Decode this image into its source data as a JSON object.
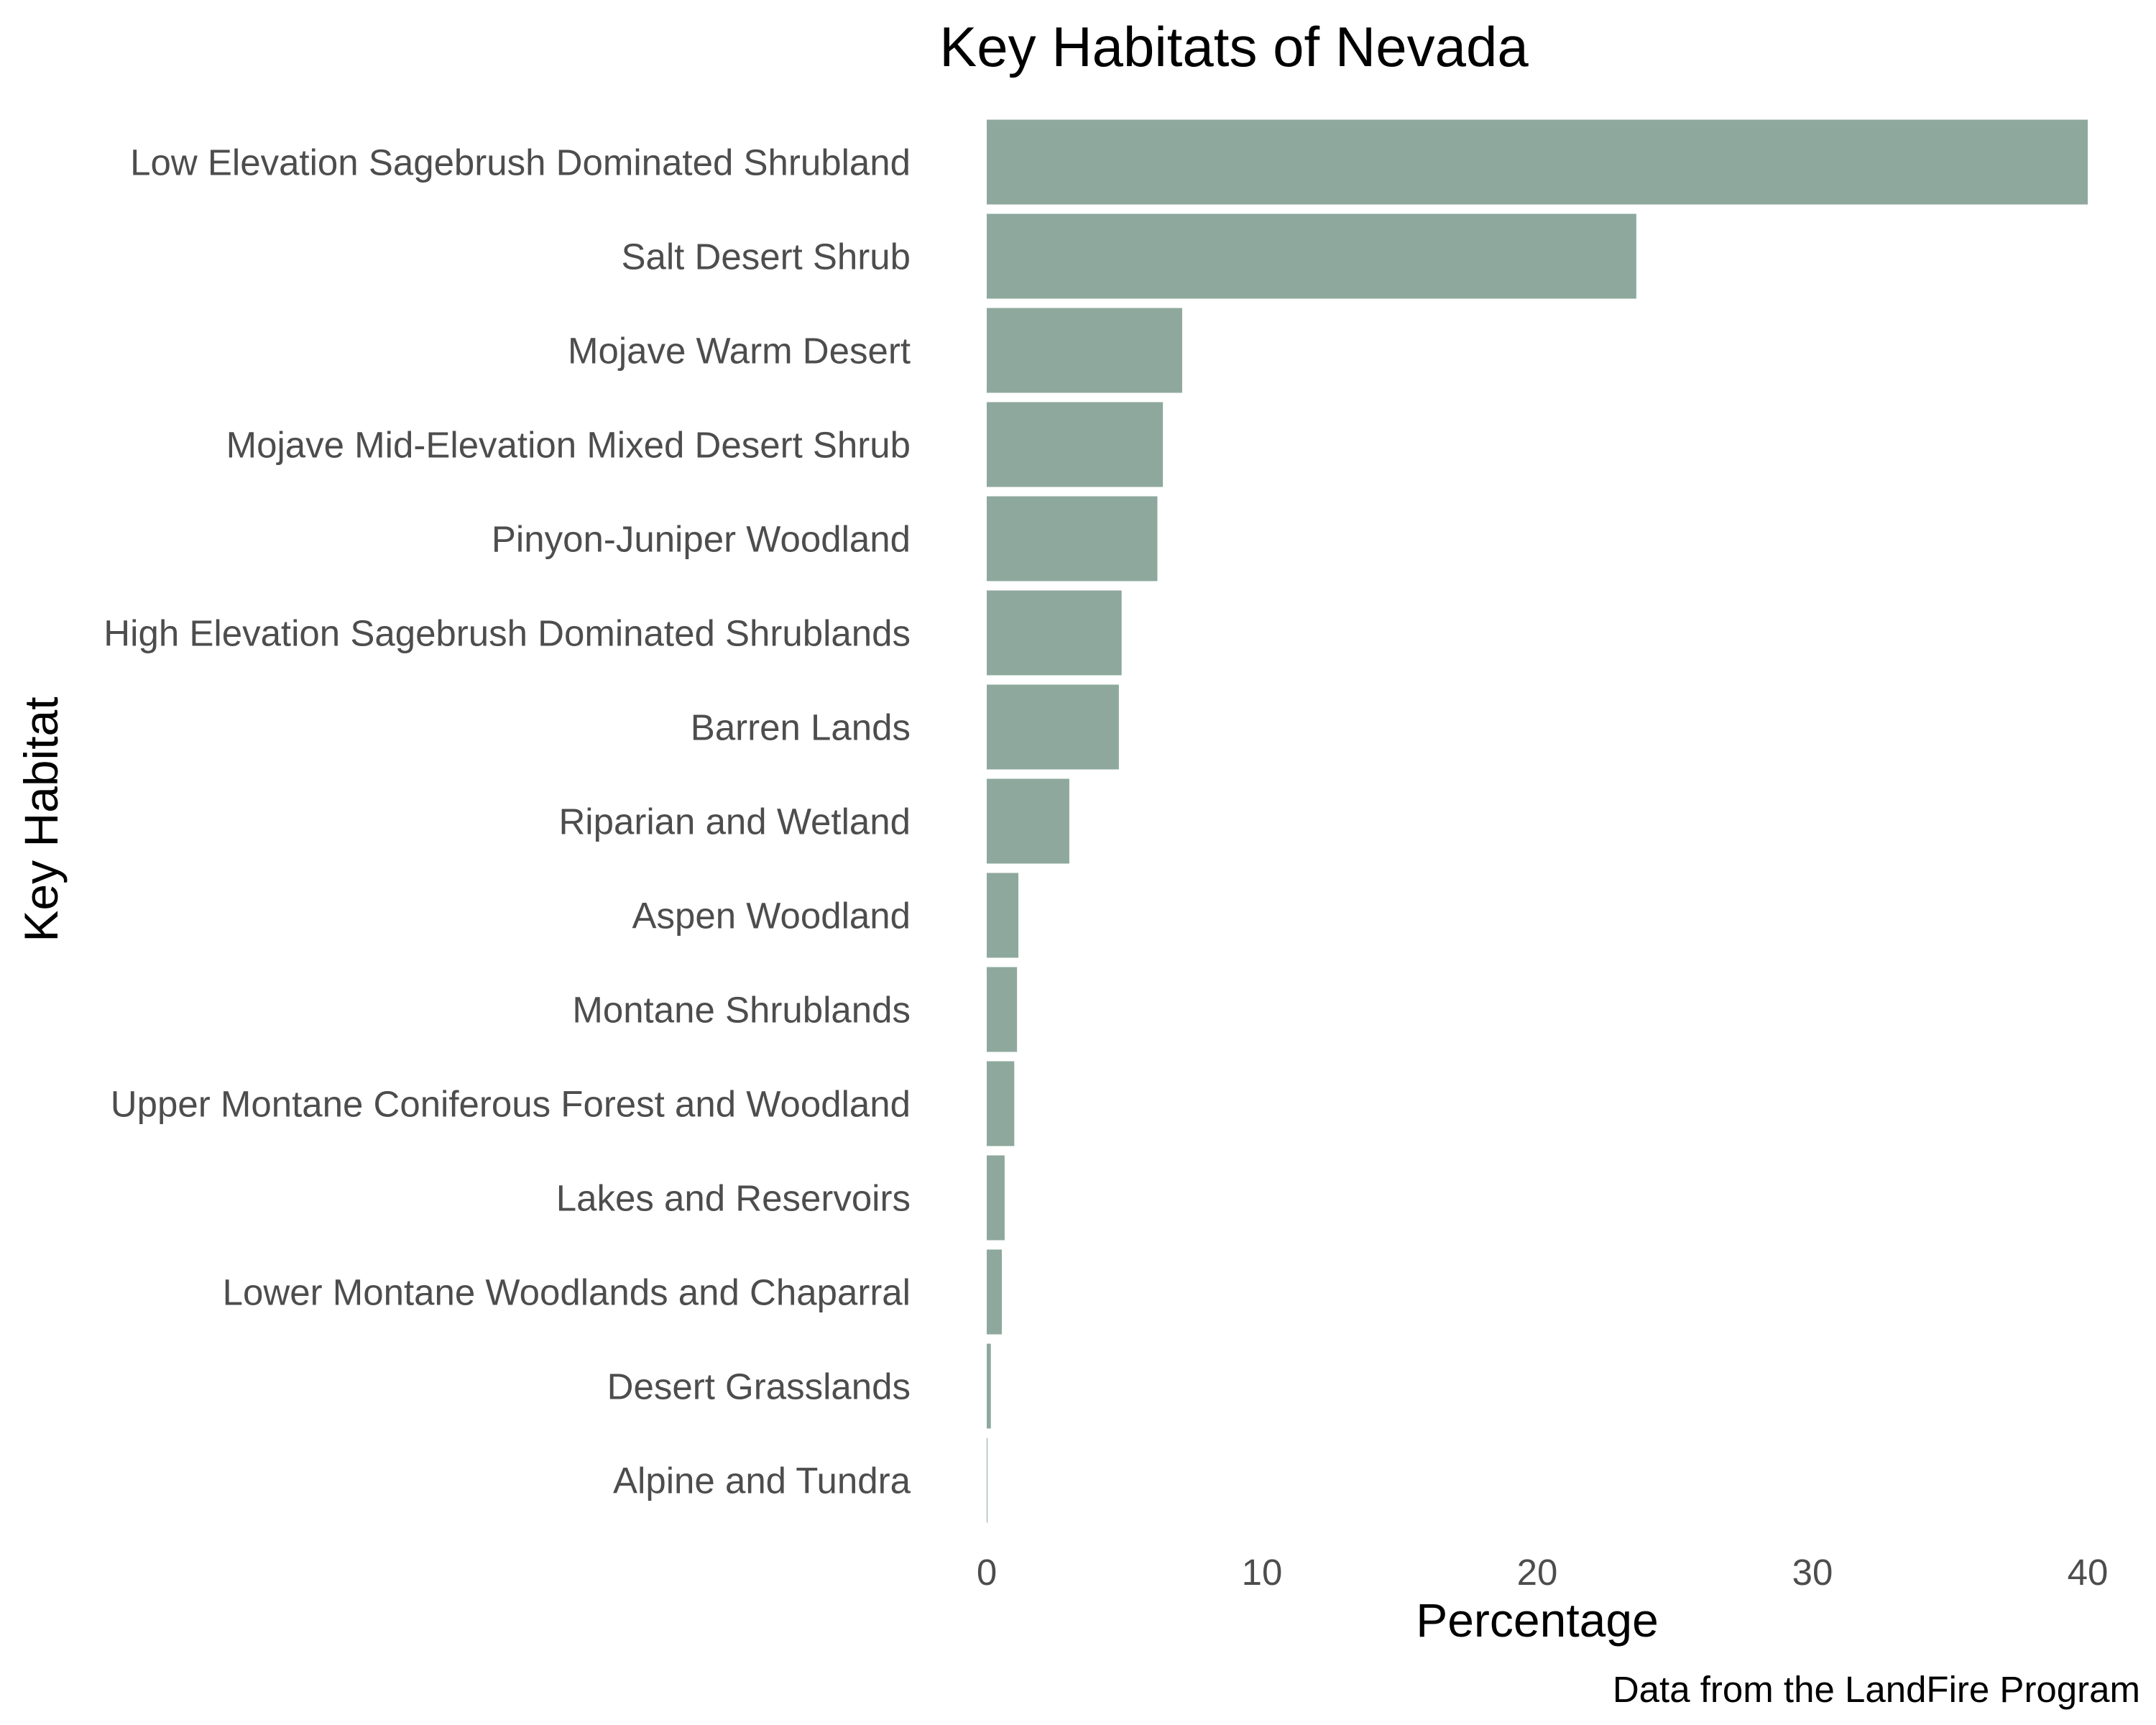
{
  "chart_data": {
    "type": "bar",
    "orientation": "horizontal",
    "title": "Key Habitats of Nevada",
    "xlabel": "Percentage",
    "ylabel": "Key Habitat",
    "caption": "Data from the LandFire Program",
    "categories": [
      "Low Elevation Sagebrush Dominated Shrubland",
      "Salt Desert Shrub",
      "Mojave Warm Desert",
      "Mojave Mid-Elevation Mixed Desert Shrub",
      "Pinyon-Juniper Woodland",
      "High Elevation Sagebrush Dominated Shrublands",
      "Barren Lands",
      "Riparian and Wetland",
      "Aspen Woodland",
      "Montane Shrublands",
      "Upper Montane Coniferous Forest and Woodland",
      "Lakes and Reservoirs",
      "Lower Montane Woodlands and Chaparral",
      "Desert Grasslands",
      "Alpine and Tundra"
    ],
    "values": [
      40.0,
      23.6,
      7.1,
      6.4,
      6.2,
      4.9,
      4.8,
      3.0,
      1.15,
      1.1,
      1.0,
      0.65,
      0.55,
      0.15,
      0.02
    ],
    "xlim": [
      0,
      40
    ],
    "xticks": [
      0,
      10,
      20,
      30,
      40
    ],
    "grid": false,
    "legend": "none",
    "colors": {
      "bar": "#8ea89d",
      "text": "#4d4d4d",
      "title": "#000000"
    }
  }
}
